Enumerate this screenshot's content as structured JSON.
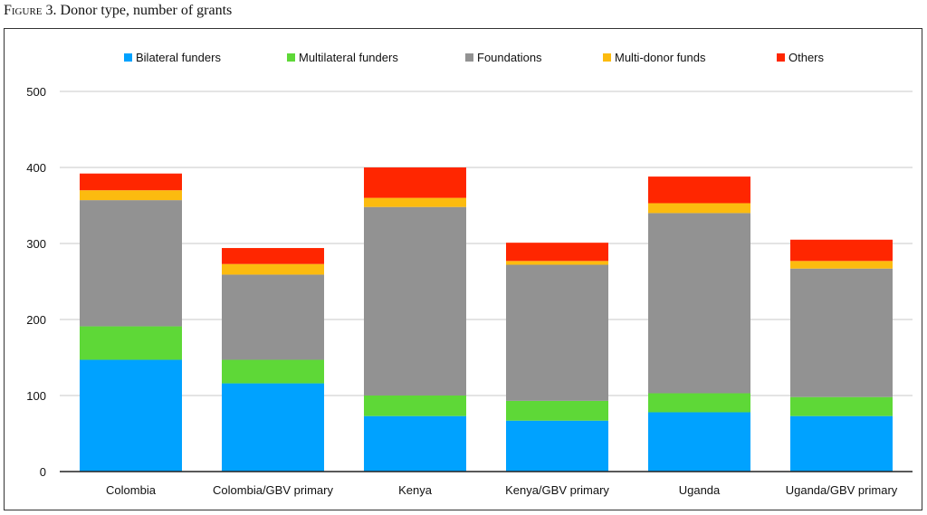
{
  "figure": {
    "label": "Figure 3.",
    "caption": "Donor type, number of grants"
  },
  "chart_data": {
    "type": "bar",
    "stacked": true,
    "categories": [
      "Colombia",
      "Colombia/GBV primary",
      "Kenya",
      "Kenya/GBV primary",
      "Uganda",
      "Uganda/GBV primary"
    ],
    "series": [
      {
        "name": "Bilateral funders",
        "color": "#00a2ff",
        "values": [
          147,
          116,
          73,
          67,
          78,
          73
        ]
      },
      {
        "name": "Multilateral funders",
        "color": "#5ed837",
        "values": [
          44,
          31,
          27,
          26,
          25,
          25
        ]
      },
      {
        "name": "Foundations",
        "color": "#929292",
        "values": [
          166,
          112,
          248,
          179,
          237,
          169
        ]
      },
      {
        "name": "Multi-donor funds",
        "color": "#fcbb0f",
        "values": [
          13,
          14,
          12,
          5,
          13,
          10
        ]
      },
      {
        "name": "Others",
        "color": "#ff2600",
        "values": [
          22,
          21,
          40,
          24,
          35,
          28
        ]
      }
    ],
    "ylim": [
      0,
      500
    ],
    "yticks": [
      "0",
      "100",
      "200",
      "300",
      "400",
      "500"
    ],
    "grid": true,
    "legend": "top"
  }
}
